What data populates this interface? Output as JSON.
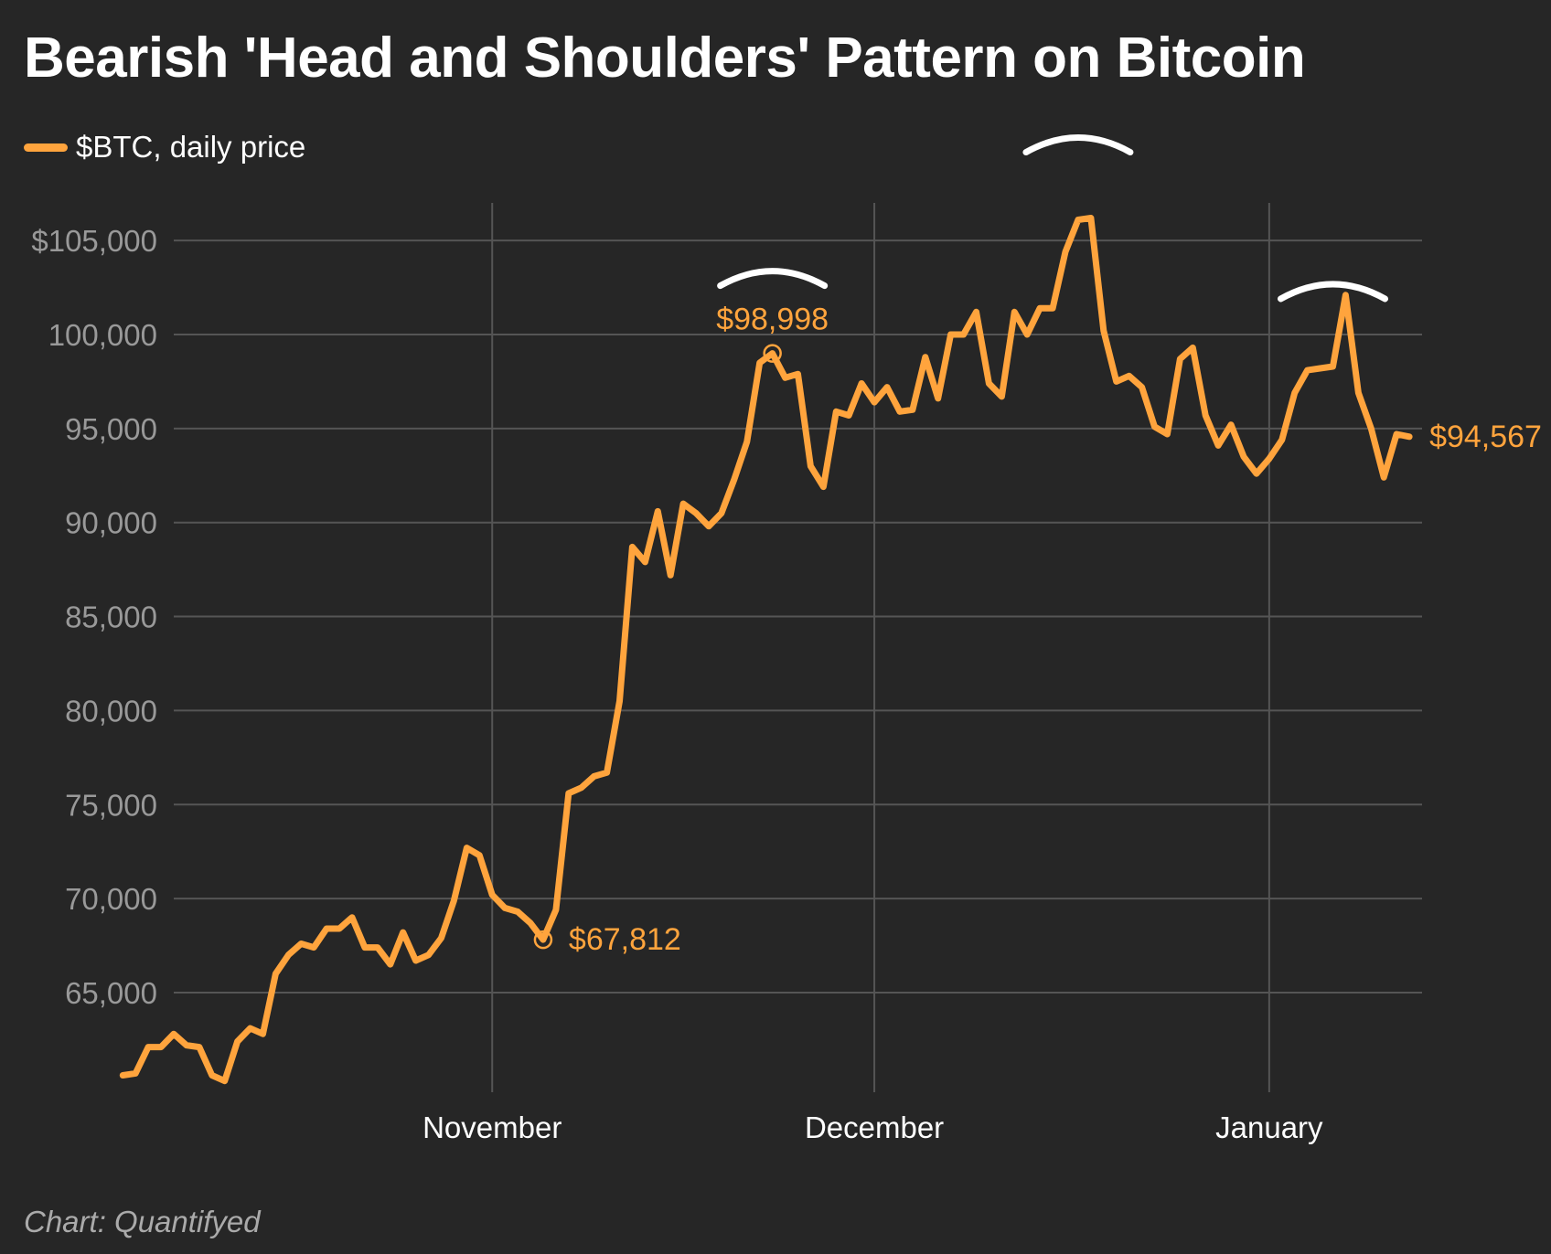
{
  "title": "Bearish 'Head and Shoulders' Pattern on Bitcoin",
  "source": "Chart: Quantifyed",
  "colors": {
    "background": "#262626",
    "line": "#FFA43D",
    "grid": "#555555",
    "tick_text": "#999999",
    "month_text": "#ffffff",
    "arc": "#ffffff"
  },
  "chart_data": {
    "type": "line",
    "title": "Bearish 'Head and Shoulders' Pattern on Bitcoin",
    "xlabel": "",
    "ylabel": "",
    "x_range": [
      "2024-10-07",
      "2025-01-13"
    ],
    "ylim": [
      59700,
      107000
    ],
    "grid": true,
    "legend_position": "top-left",
    "y_ticks": [
      {
        "value": 65000,
        "label": "65,000"
      },
      {
        "value": 70000,
        "label": "70,000"
      },
      {
        "value": 75000,
        "label": "75,000"
      },
      {
        "value": 80000,
        "label": "80,000"
      },
      {
        "value": 85000,
        "label": "85,000"
      },
      {
        "value": 90000,
        "label": "90,000"
      },
      {
        "value": 95000,
        "label": "95,000"
      },
      {
        "value": 100000,
        "label": "100,000"
      },
      {
        "value": 105000,
        "label": "$105,000"
      }
    ],
    "x_ticks": [
      {
        "date": "2024-11-01",
        "label": "November"
      },
      {
        "date": "2024-12-01",
        "label": "December"
      },
      {
        "date": "2025-01-01",
        "label": "January"
      }
    ],
    "series": [
      {
        "name": "$BTC, daily price",
        "color": "#FFA43D",
        "x": [
          "2024-10-03",
          "2024-10-04",
          "2024-10-05",
          "2024-10-06",
          "2024-10-07",
          "2024-10-08",
          "2024-10-09",
          "2024-10-10",
          "2024-10-11",
          "2024-10-12",
          "2024-10-13",
          "2024-10-14",
          "2024-10-15",
          "2024-10-16",
          "2024-10-17",
          "2024-10-18",
          "2024-10-19",
          "2024-10-20",
          "2024-10-21",
          "2024-10-22",
          "2024-10-23",
          "2024-10-24",
          "2024-10-25",
          "2024-10-26",
          "2024-10-27",
          "2024-10-28",
          "2024-10-29",
          "2024-10-30",
          "2024-10-31",
          "2024-11-01",
          "2024-11-02",
          "2024-11-03",
          "2024-11-04",
          "2024-11-05",
          "2024-11-06",
          "2024-11-07",
          "2024-11-08",
          "2024-11-09",
          "2024-11-10",
          "2024-11-11",
          "2024-11-12",
          "2024-11-13",
          "2024-11-14",
          "2024-11-15",
          "2024-11-16",
          "2024-11-17",
          "2024-11-18",
          "2024-11-19",
          "2024-11-20",
          "2024-11-21",
          "2024-11-22",
          "2024-11-23",
          "2024-11-24",
          "2024-11-25",
          "2024-11-26",
          "2024-11-27",
          "2024-11-28",
          "2024-11-29",
          "2024-11-30",
          "2024-12-01",
          "2024-12-02",
          "2024-12-03",
          "2024-12-04",
          "2024-12-05",
          "2024-12-06",
          "2024-12-07",
          "2024-12-08",
          "2024-12-09",
          "2024-12-10",
          "2024-12-11",
          "2024-12-12",
          "2024-12-13",
          "2024-12-14",
          "2024-12-15",
          "2024-12-16",
          "2024-12-17",
          "2024-12-18",
          "2024-12-19",
          "2024-12-20",
          "2024-12-21",
          "2024-12-22",
          "2024-12-23",
          "2024-12-24",
          "2024-12-25",
          "2024-12-26",
          "2024-12-27",
          "2024-12-28",
          "2024-12-29",
          "2024-12-30",
          "2024-12-31",
          "2025-01-01",
          "2025-01-02",
          "2025-01-03",
          "2025-01-04",
          "2025-01-05",
          "2025-01-06",
          "2025-01-07",
          "2025-01-08",
          "2025-01-09",
          "2025-01-10",
          "2025-01-11",
          "2025-01-12"
        ],
        "values": [
          60600,
          60700,
          62100,
          62100,
          62800,
          62200,
          62100,
          60600,
          60300,
          62400,
          63100,
          62800,
          66000,
          67000,
          67600,
          67400,
          68400,
          68400,
          69000,
          67400,
          67400,
          66500,
          68200,
          66700,
          67000,
          67900,
          69900,
          72700,
          72300,
          70200,
          69500,
          69300,
          68700,
          67812,
          69400,
          75600,
          75900,
          76500,
          76700,
          80500,
          88700,
          87900,
          90600,
          87200,
          91000,
          90500,
          89800,
          90500,
          92300,
          94300,
          98500,
          98998,
          97700,
          97900,
          93000,
          91900,
          95900,
          95700,
          97400,
          96400,
          97200,
          95900,
          96000,
          98800,
          96600,
          100000,
          100000,
          101200,
          97400,
          96700,
          101200,
          100000,
          101400,
          101400,
          104400,
          106100,
          106200,
          100200,
          97500,
          97800,
          97200,
          95100,
          94700,
          98700,
          99300,
          95700,
          94100,
          95200,
          93500,
          92600,
          93400,
          94400,
          96900,
          98100,
          98200,
          98300,
          102100,
          96900,
          95000,
          92400,
          94700,
          94567
        ]
      }
    ],
    "annotations": [
      {
        "text": "$98,998",
        "date": "2024-11-23",
        "value": 98998
      },
      {
        "text": "$67,812",
        "date": "2024-11-05",
        "value": 67812
      },
      {
        "text": "$94,567",
        "date": "2025-01-12",
        "value": 94567
      }
    ],
    "pattern_marks": [
      {
        "role": "left shoulder",
        "date": "2024-11-23"
      },
      {
        "role": "head",
        "date": "2024-12-17"
      },
      {
        "role": "right shoulder",
        "date": "2025-01-06"
      }
    ]
  }
}
